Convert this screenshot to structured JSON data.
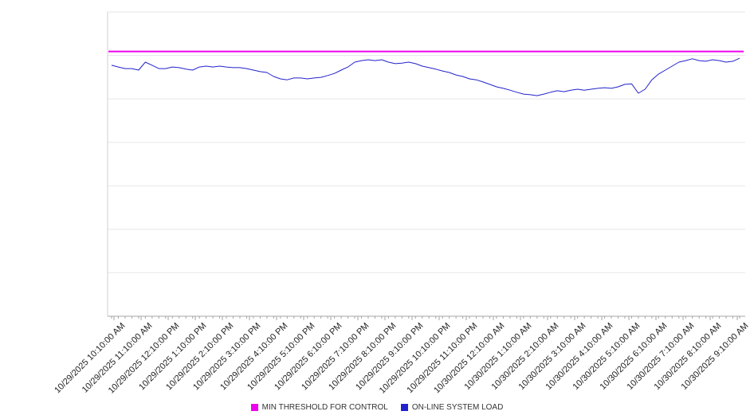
{
  "chart_data": {
    "type": "line",
    "title": "",
    "x_labels": [
      "10/29/2025 10:10:00 AM",
      "10/29/2025 11:10:00 AM",
      "10/29/2025 12:10:00 PM",
      "10/29/2025 1:10:00 PM",
      "10/29/2025 2:10:00 PM",
      "10/29/2025 3:10:00 PM",
      "10/29/2025 4:10:00 PM",
      "10/29/2025 5:10:00 PM",
      "10/29/2025 6:10:00 PM",
      "10/29/2025 7:10:00 PM",
      "10/29/2025 8:10:00 PM",
      "10/29/2025 9:10:00 PM",
      "10/29/2025 10:10:00 PM",
      "10/29/2025 11:10:00 PM",
      "10/30/2025 12:10:00 AM",
      "10/30/2025 1:10:00 AM",
      "10/30/2025 2:10:00 AM",
      "10/30/2025 3:10:00 AM",
      "10/30/2025 4:10:00 AM",
      "10/30/2025 5:10:00 AM",
      "10/30/2025 6:10:00 AM",
      "10/30/2025 7:10:00 AM",
      "10/30/2025 8:10:00 AM",
      "10/30/2025 9:10:00 AM"
    ],
    "ylim": [
      0,
      100
    ],
    "y_gridline_count": 8,
    "grid": "horizontal",
    "legend_position": "bottom",
    "series": [
      {
        "name": "MIN THRESHOLD FOR CONTROL",
        "type": "threshold",
        "color": "#ee00ee",
        "value": 87
      },
      {
        "name": "ON-LINE SYSTEM LOAD",
        "type": "line",
        "color": "#2222cc",
        "values": [
          82.5,
          81.9,
          81.4,
          81.4,
          80.9,
          83.5,
          82.5,
          81.4,
          81.4,
          81.9,
          81.7,
          81.2,
          80.9,
          81.9,
          82.2,
          81.9,
          82.2,
          81.9,
          81.7,
          81.7,
          81.4,
          80.9,
          80.4,
          80.1,
          78.8,
          78.0,
          77.7,
          78.3,
          78.3,
          78.0,
          78.3,
          78.5,
          79.1,
          79.8,
          80.9,
          81.9,
          83.5,
          84.0,
          84.3,
          84.0,
          84.3,
          83.5,
          83.0,
          83.2,
          83.5,
          83.0,
          82.2,
          81.7,
          81.2,
          80.6,
          80.1,
          79.3,
          78.8,
          78.0,
          77.7,
          77.0,
          76.2,
          75.4,
          74.9,
          74.3,
          73.6,
          73.0,
          72.8,
          72.5,
          73.0,
          73.6,
          74.1,
          73.8,
          74.3,
          74.6,
          74.3,
          74.6,
          74.9,
          75.1,
          74.9,
          75.4,
          76.2,
          76.4,
          73.3,
          74.6,
          77.7,
          79.6,
          80.9,
          82.2,
          83.5,
          84.0,
          84.6,
          84.0,
          83.8,
          84.3,
          84.0,
          83.5,
          83.8,
          84.8
        ]
      }
    ]
  },
  "legend": {
    "items": [
      {
        "label": "MIN THRESHOLD FOR CONTROL",
        "color": "#ee00ee"
      },
      {
        "label": "ON-LINE SYSTEM LOAD",
        "color": "#2222cc"
      }
    ]
  },
  "colors": {
    "gridline": "#e7e7e7",
    "axis": "#a6a6a6",
    "left_axis": "#cfcfcf",
    "label_text": "#222222"
  }
}
